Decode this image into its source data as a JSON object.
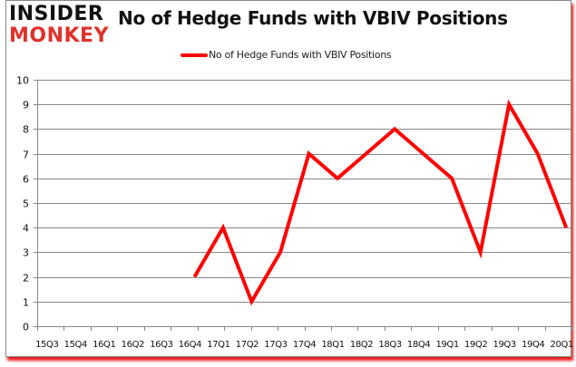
{
  "logo": {
    "line1": "INSIDER",
    "line2": "MONKEY"
  },
  "colors": {
    "series": "#ff0000",
    "grid": "#888888",
    "logo_accent": "#e0312a",
    "shadow": "#e60000"
  },
  "chart_data": {
    "type": "line",
    "title": "No of Hedge Funds with VBIV Positions",
    "xlabel": "",
    "ylabel": "",
    "ylim": [
      0,
      10
    ],
    "yticks": [
      0,
      1,
      2,
      3,
      4,
      5,
      6,
      7,
      8,
      9,
      10
    ],
    "grid": true,
    "legend_position": "top",
    "categories": [
      "15Q3",
      "15Q4",
      "16Q1",
      "16Q2",
      "16Q3",
      "16Q4",
      "17Q1",
      "17Q2",
      "17Q3",
      "17Q4",
      "18Q1",
      "18Q2",
      "18Q3",
      "18Q4",
      "19Q1",
      "19Q2",
      "19Q3",
      "19Q4",
      "20Q1"
    ],
    "series": [
      {
        "name": "No of Hedge Funds with VBIV Positions",
        "values": [
          null,
          null,
          null,
          null,
          null,
          2,
          4,
          1,
          3,
          7,
          6,
          7,
          8,
          7,
          6,
          3,
          9,
          7,
          4
        ]
      }
    ]
  }
}
